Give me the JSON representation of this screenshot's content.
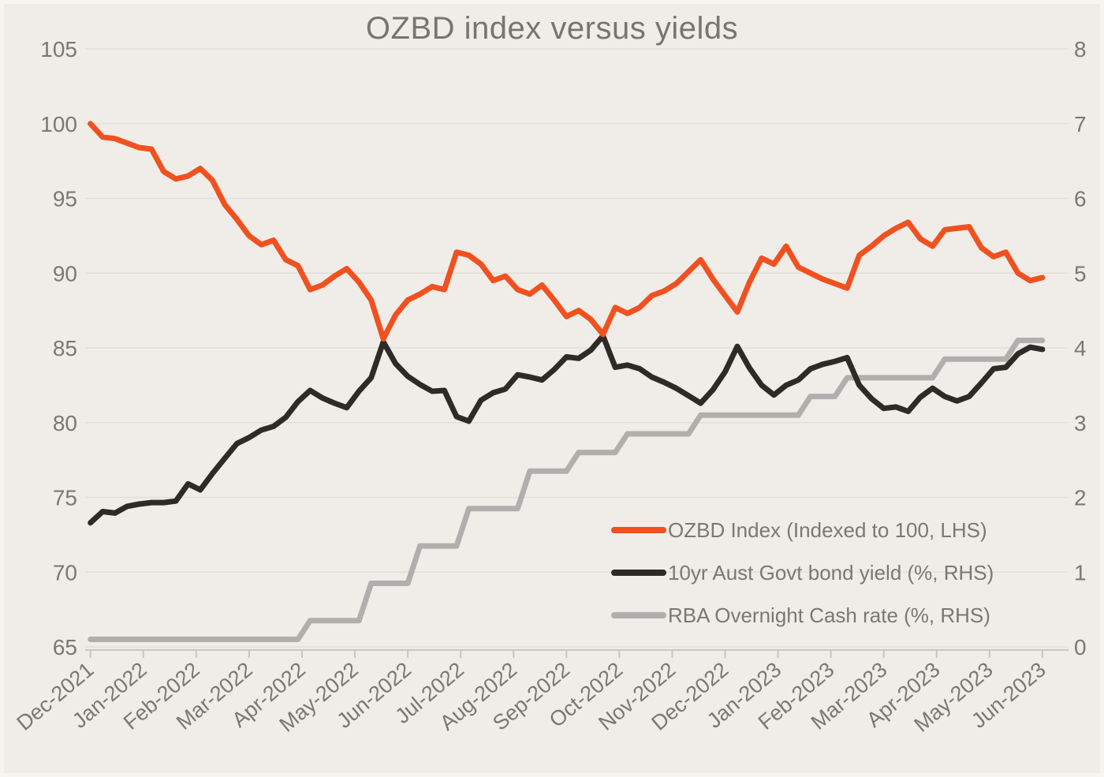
{
  "title": "OZBD index versus yields",
  "colors": {
    "background": "#f0ede9",
    "gridline": "#e2dfda",
    "axis": "#c9c6c1",
    "text": "#7b7874",
    "ozbd_orange": "#f1501f",
    "bond_black": "#2d2a28",
    "cash_gray": "#b1afad"
  },
  "chart_data": {
    "type": "line",
    "title": "OZBD index versus yields",
    "xlabel": "",
    "ylabel_left": "",
    "ylabel_right": "",
    "grid": true,
    "legend_position": "lower right",
    "x_unit": "weekly observations, Dec-2021 to Jun-2023",
    "x_tick_labels": [
      "Dec-2021",
      "Jan-2022",
      "Feb-2022",
      "Mar-2022",
      "Apr-2022",
      "May-2022",
      "Jun-2022",
      "Jul-2022",
      "Aug-2022",
      "Sep-2022",
      "Oct-2022",
      "Nov-2022",
      "Dec-2022",
      "Jan-2023",
      "Feb-2023",
      "Mar-2023",
      "Apr-2023",
      "May-2023",
      "Jun-2023"
    ],
    "left_axis": {
      "min": 65,
      "max": 105,
      "ticks": [
        105,
        100,
        95,
        90,
        85,
        80,
        75,
        70,
        65
      ]
    },
    "right_axis": {
      "min": 0,
      "max": 8,
      "ticks": [
        8,
        7,
        6,
        5,
        4,
        3,
        2,
        1,
        0
      ]
    },
    "series": [
      {
        "name": "OZBD Index (Indexed to 100, LHS)",
        "axis": "left",
        "color": "#f1501f",
        "values": [
          100.0,
          99.1,
          99.0,
          98.7,
          98.4,
          98.3,
          96.8,
          96.3,
          96.5,
          97.0,
          96.2,
          94.6,
          93.6,
          92.5,
          91.9,
          92.2,
          90.9,
          90.5,
          88.9,
          89.2,
          89.8,
          90.3,
          89.4,
          88.2,
          85.6,
          87.2,
          88.2,
          88.6,
          89.1,
          88.9,
          91.4,
          91.2,
          90.6,
          89.5,
          89.8,
          88.9,
          88.6,
          89.2,
          88.2,
          87.1,
          87.5,
          86.9,
          85.9,
          87.7,
          87.3,
          87.7,
          88.5,
          88.8,
          89.3,
          90.1,
          90.9,
          89.6,
          88.5,
          87.4,
          89.4,
          91.0,
          90.6,
          91.8,
          90.4,
          90.0,
          89.6,
          89.3,
          89.0,
          91.2,
          91.8,
          92.5,
          93.0,
          93.4,
          92.3,
          91.8,
          92.9,
          93.0,
          93.1,
          91.7,
          91.1,
          91.4,
          90.0,
          89.5,
          89.7
        ]
      },
      {
        "name": "10yr Aust Govt bond yield (%, RHS)",
        "axis": "right",
        "color": "#2d2a28",
        "values": [
          1.66,
          1.81,
          1.79,
          1.88,
          1.91,
          1.93,
          1.93,
          1.95,
          2.18,
          2.1,
          2.32,
          2.52,
          2.72,
          2.8,
          2.9,
          2.95,
          3.07,
          3.28,
          3.43,
          3.33,
          3.26,
          3.2,
          3.42,
          3.6,
          4.08,
          3.79,
          3.62,
          3.51,
          3.42,
          3.43,
          3.08,
          3.02,
          3.3,
          3.4,
          3.45,
          3.64,
          3.61,
          3.57,
          3.71,
          3.88,
          3.86,
          3.97,
          4.16,
          3.74,
          3.77,
          3.72,
          3.61,
          3.54,
          3.46,
          3.36,
          3.26,
          3.44,
          3.68,
          4.02,
          3.73,
          3.5,
          3.37,
          3.5,
          3.57,
          3.72,
          3.78,
          3.82,
          3.87,
          3.5,
          3.32,
          3.19,
          3.21,
          3.15,
          3.34,
          3.46,
          3.35,
          3.29,
          3.35,
          3.53,
          3.72,
          3.74,
          3.92,
          4.01,
          3.98
        ]
      },
      {
        "name": "RBA Overnight Cash rate (%, RHS)",
        "axis": "right",
        "color": "#b1afad",
        "values": [
          0.1,
          0.1,
          0.1,
          0.1,
          0.1,
          0.1,
          0.1,
          0.1,
          0.1,
          0.1,
          0.1,
          0.1,
          0.1,
          0.1,
          0.1,
          0.1,
          0.1,
          0.1,
          0.35,
          0.35,
          0.35,
          0.35,
          0.35,
          0.85,
          0.85,
          0.85,
          0.85,
          1.35,
          1.35,
          1.35,
          1.35,
          1.85,
          1.85,
          1.85,
          1.85,
          1.85,
          2.35,
          2.35,
          2.35,
          2.35,
          2.6,
          2.6,
          2.6,
          2.6,
          2.85,
          2.85,
          2.85,
          2.85,
          2.85,
          2.85,
          3.1,
          3.1,
          3.1,
          3.1,
          3.1,
          3.1,
          3.1,
          3.1,
          3.1,
          3.35,
          3.35,
          3.35,
          3.6,
          3.6,
          3.6,
          3.6,
          3.6,
          3.6,
          3.6,
          3.6,
          3.85,
          3.85,
          3.85,
          3.85,
          3.85,
          3.85,
          4.1,
          4.1,
          4.1
        ]
      }
    ]
  }
}
